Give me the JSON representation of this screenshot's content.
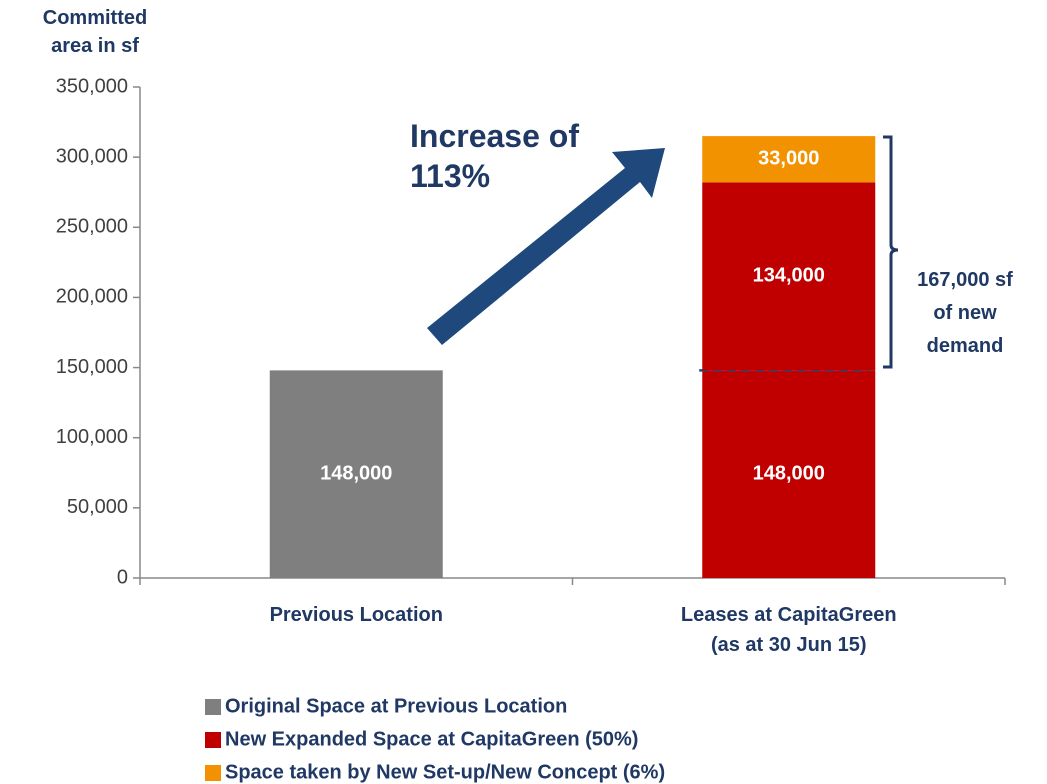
{
  "chart_data": {
    "type": "stacked_bar",
    "y_label": "Committed area in sf",
    "categories": [
      "Previous Location",
      "Leases at CapitaGreen (as at 30 Jun 15)"
    ],
    "series": [
      {
        "name": "Original Space at Previous Location",
        "color": "#7f7f7f",
        "colors": [
          "#7f7f7f",
          "#c00000"
        ],
        "values": [
          148000,
          148000
        ],
        "value_labels": [
          "148,000",
          "148,000"
        ]
      },
      {
        "name": "New Expanded Space at CapitaGreen (50%)",
        "color": "#c00000",
        "values": [
          null,
          134000
        ],
        "value_labels": [
          null,
          "134,000"
        ]
      },
      {
        "name": "Space taken by New Set-up/New Concept (6%)",
        "color": "#f39200",
        "values": [
          null,
          33000
        ],
        "value_labels": [
          null,
          "33,000"
        ]
      }
    ],
    "ylim": [
      0,
      350000
    ],
    "yticks": [
      0,
      {
        "value": 50000,
        "label": "50,000"
      },
      {
        "value": 100000,
        "label": "100,000"
      },
      {
        "value": 150000,
        "label": "150,000"
      },
      {
        "value": 200000,
        "label": "200,000"
      },
      {
        "value": 250000,
        "label": "250,000"
      },
      {
        "value": 300000,
        "label": "300,000"
      },
      {
        "value": 350000,
        "label": "350,000"
      }
    ],
    "annotations": [
      "Increase of 113%",
      "167,000 sf of new demand"
    ],
    "legend": "bottom"
  }
}
